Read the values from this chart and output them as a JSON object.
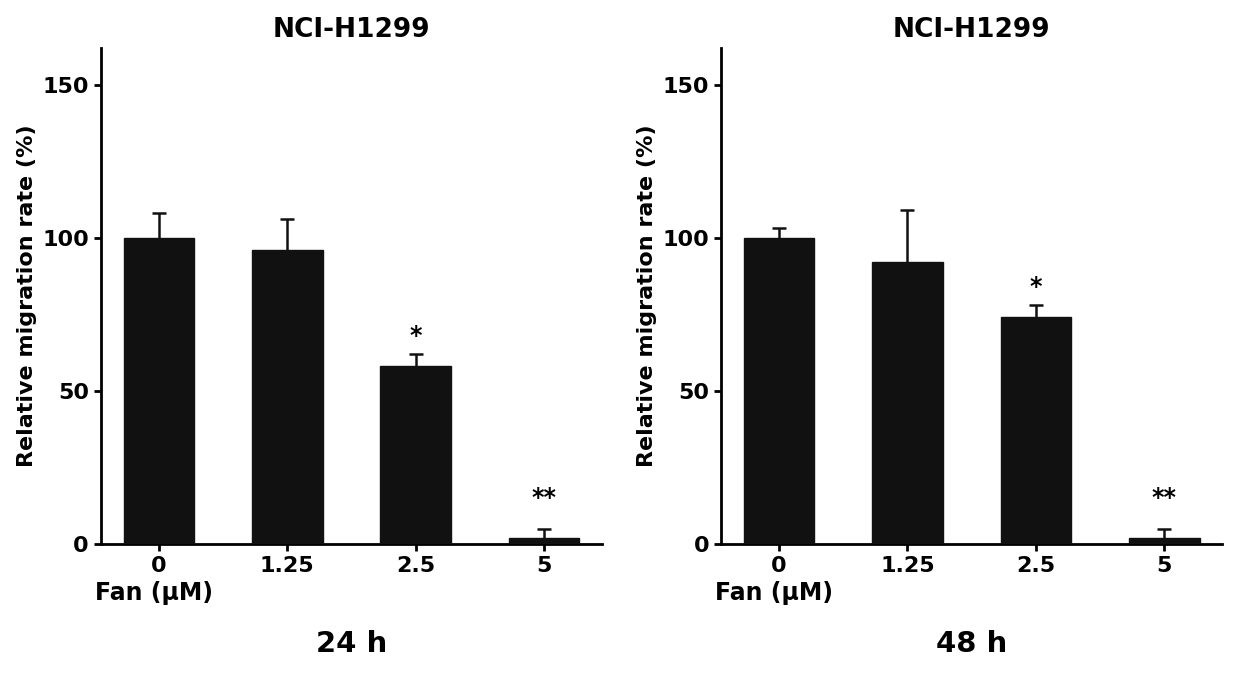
{
  "left_chart": {
    "title": "NCI-H1299",
    "time_label": "24 h",
    "categories": [
      "0",
      "1.25",
      "2.5",
      "5"
    ],
    "values": [
      100,
      96,
      58,
      2
    ],
    "errors": [
      8,
      10,
      4,
      3
    ],
    "significance": [
      "",
      "",
      "*",
      "**"
    ],
    "bar_color": "#111111",
    "error_color": "#111111"
  },
  "right_chart": {
    "title": "NCI-H1299",
    "time_label": "48 h",
    "categories": [
      "0",
      "1.25",
      "2.5",
      "5"
    ],
    "values": [
      100,
      92,
      74,
      2
    ],
    "errors": [
      3,
      17,
      4,
      3
    ],
    "significance": [
      "",
      "",
      "*",
      "**"
    ],
    "bar_color": "#111111",
    "error_color": "#111111"
  },
  "ylabel": "Relative migration rate (%)",
  "xlabel_prefix": "Fan (μM)",
  "ylim": [
    0,
    162
  ],
  "yticks": [
    0,
    50,
    100,
    150
  ],
  "bar_width": 0.55,
  "background_color": "#ffffff",
  "title_fontsize": 19,
  "label_fontsize": 16,
  "tick_fontsize": 16,
  "sig_fontsize": 17,
  "fan_label_fontsize": 17,
  "time_label_fontsize": 21
}
